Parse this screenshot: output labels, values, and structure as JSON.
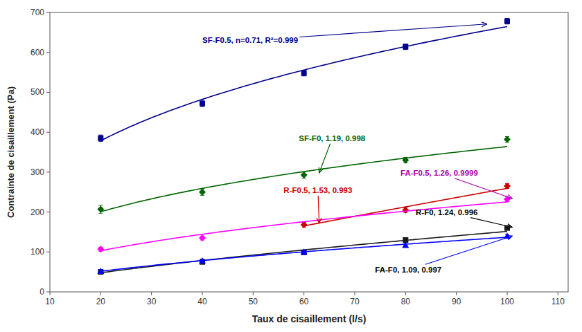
{
  "chart_data": {
    "type": "scatter",
    "xlabel": "Taux de cisaillement (l/s)",
    "ylabel": "Contrainte de cisaillement (Pa)",
    "x": [
      20,
      40,
      60,
      80,
      100
    ],
    "xlim": [
      10,
      112
    ],
    "ylim": [
      0,
      700
    ],
    "xticks": [
      10,
      20,
      30,
      40,
      50,
      60,
      70,
      80,
      90,
      100,
      110
    ],
    "yticks": [
      0,
      100,
      200,
      300,
      400,
      500,
      600,
      700
    ],
    "grid": false,
    "series": [
      {
        "color": "#00008B",
        "marker": "square",
        "values": [
          385,
          472,
          548,
          614,
          678
        ],
        "errors": [
          8,
          8,
          7,
          7,
          7
        ],
        "fit_coefficient": 132.75,
        "fit_exponent": 0.34976
      },
      {
        "color": "#006400",
        "marker": "diamond",
        "values": [
          207,
          250,
          293,
          330,
          382
        ],
        "errors": [
          10,
          8,
          8,
          7,
          7
        ],
        "fit_coefficient": 66.092,
        "fit_exponent": 0.37051
      },
      {
        "color": "#CC0000",
        "marker": "diamond",
        "values": [
          null,
          null,
          168,
          205,
          265
        ],
        "errors": [
          null,
          null,
          6,
          6,
          6
        ],
        "fit_coefficient": 4.4502,
        "fit_exponent": 0.88276
      },
      {
        "color": "#FF00FF",
        "marker": "diamond",
        "values": [
          107,
          135,
          null,
          null,
          232
        ],
        "errors": [
          5,
          5,
          null,
          null,
          6
        ],
        "fit_coefficient": 23.975,
        "fit_exponent": 0.48661
      },
      {
        "color": "#1a1a1a",
        "marker": "square",
        "values": [
          50,
          75,
          99,
          130,
          160
        ],
        "errors": [
          4,
          4,
          4,
          4,
          5
        ],
        "fit_coefficient": 5.5937,
        "fit_exponent": 0.71633
      },
      {
        "color": "#0000FF",
        "marker": "triangle",
        "values": [
          52,
          78,
          100,
          117,
          140
        ],
        "errors": [
          4,
          4,
          4,
          4,
          4
        ],
        "fit_coefficient": 8.4058,
        "fit_exponent": 0.6057
      }
    ],
    "annotations": [
      {
        "text": "SF-F0.5, n=0.71, R²=0.999",
        "x": 96,
        "y": 671,
        "text_x": 40,
        "text_y": 630,
        "color": "#00008B",
        "arrow_color": "#00008B"
      },
      {
        "text": "SF-F0, 1.19, 0.998",
        "x": 63,
        "y": 298,
        "text_x": 59,
        "text_y": 385,
        "color": "#006400",
        "arrow_color": "#006400"
      },
      {
        "text": "R-F0.5, 1.53, 0.993",
        "x": 63,
        "y": 172,
        "text_x": 56,
        "text_y": 255,
        "color": "#CC0000",
        "arrow_color": "#CC0000"
      },
      {
        "text": "FA-F0.5, 1.26, 0.9999",
        "x": 101,
        "y": 234,
        "text_x": 79,
        "text_y": 298,
        "color": "#AA00AA",
        "arrow_color": "#AA00AA"
      },
      {
        "text": "R-F0, 1.24, 0.996",
        "x": 101,
        "y": 162,
        "text_x": 82,
        "text_y": 200,
        "color": "#000000",
        "arrow_color": "#000000"
      },
      {
        "text": "FA-F0, 1.09, 0.997",
        "x": 101,
        "y": 140,
        "text_x": 74,
        "text_y": 55,
        "color": "#000000",
        "arrow_color": "#0000FF"
      }
    ]
  }
}
